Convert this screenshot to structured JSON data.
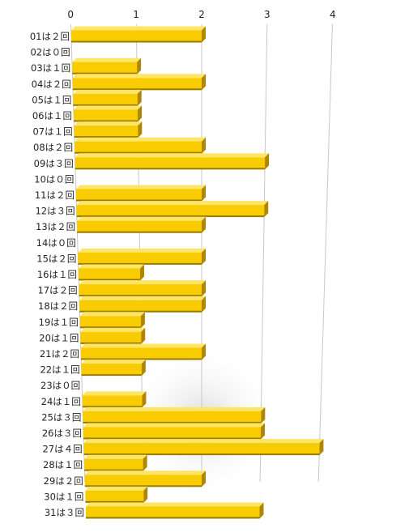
{
  "chart_data": {
    "type": "bar",
    "orientation": "horizontal",
    "style": "3d-perspective",
    "title": "",
    "xlabel": "",
    "ylabel": "",
    "xlim": [
      0,
      4
    ],
    "x_ticks": [
      "0",
      "1",
      "2",
      "3",
      "4"
    ],
    "grid": true,
    "legend": "none",
    "colors": {
      "bar_face": "#f8cc00",
      "bar_top": "#ffe566",
      "bar_side": "#b08600",
      "bar_shadow": "#4a3a00",
      "grid": "#c8c8c8"
    },
    "categories": [
      "01は２回",
      "02は０回",
      "03は１回",
      "04は２回",
      "05は１回",
      "06は１回",
      "07は１回",
      "08は２回",
      "09は３回",
      "10は０回",
      "11は２回",
      "12は３回",
      "13は２回",
      "14は０回",
      "15は２回",
      "16は１回",
      "17は２回",
      "18は２回",
      "19は１回",
      "20は１回",
      "21は２回",
      "22は１回",
      "23は０回",
      "24は１回",
      "25は３回",
      "26は３回",
      "27は４回",
      "28は１回",
      "29は２回",
      "30は１回",
      "31は３回"
    ],
    "values": [
      2,
      0,
      1,
      2,
      1,
      1,
      1,
      2,
      3,
      0,
      2,
      3,
      2,
      0,
      2,
      1,
      2,
      2,
      1,
      1,
      2,
      1,
      0,
      1,
      3,
      3,
      4,
      1,
      2,
      1,
      3
    ]
  }
}
